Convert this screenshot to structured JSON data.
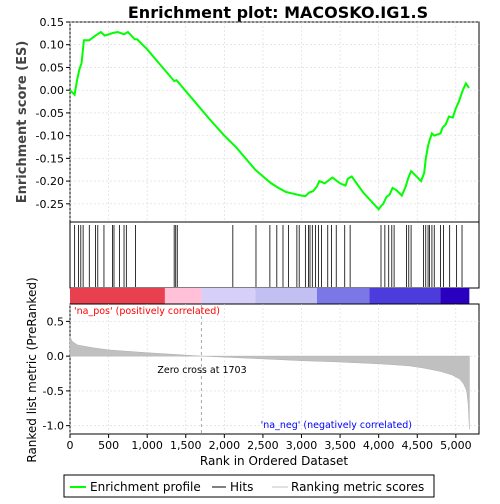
{
  "chart_data": {
    "type": "line",
    "title": "Enrichment plot: MACOSKO.IG1.S",
    "xlabel": "Rank in Ordered Dataset",
    "ylabel_top": "Enrichment score (ES)",
    "ylabel_bottom": "Ranked list metric (PreRanked)",
    "xlim": [
      0,
      5300
    ],
    "x_ticks": [
      0,
      500,
      1000,
      1500,
      2000,
      2500,
      3000,
      3500,
      4000,
      4500,
      5000
    ],
    "x_tick_labels": [
      "0",
      "500",
      "1,000",
      "1,500",
      "2,000",
      "2,500",
      "3,000",
      "3,500",
      "4,000",
      "4,500",
      "5,000"
    ],
    "es_ylim": [
      -0.29,
      0.15
    ],
    "es_ticks": [
      -0.25,
      -0.2,
      -0.15,
      -0.1,
      -0.05,
      0.0,
      0.05,
      0.1,
      0.15
    ],
    "es_tick_labels": [
      "-0.25",
      "-0.20",
      "-0.15",
      "-0.10",
      "-0.05",
      "0.00",
      "0.05",
      "0.10",
      "0.15"
    ],
    "metric_ylim": [
      -1.12,
      0.75
    ],
    "metric_ticks": [
      -1.0,
      -0.5,
      0.0,
      0.5
    ],
    "metric_tick_labels": [
      "-1.0",
      "-0.5",
      "0.0",
      "0.5"
    ],
    "grid": true,
    "colors": {
      "enrichment_line": "#00ff00",
      "hits": "#000000",
      "metric_fill": "#c0c0c0",
      "pos_label": "#ff0000",
      "neg_label": "#0000ff",
      "zero_cross_line": "#aaaaaa"
    },
    "enrichment_profile": {
      "x": [
        0,
        60,
        90,
        120,
        150,
        180,
        250,
        330,
        400,
        450,
        560,
        620,
        700,
        750,
        840,
        870,
        1000,
        1200,
        1350,
        1380,
        1400,
        1600,
        1800,
        2000,
        2150,
        2400,
        2600,
        2700,
        2800,
        2900,
        3000,
        3050,
        3100,
        3150,
        3200,
        3230,
        3300,
        3400,
        3500,
        3570,
        3600,
        3650,
        3800,
        4000,
        4030,
        4060,
        4100,
        4140,
        4180,
        4230,
        4300,
        4350,
        4380,
        4420,
        4550,
        4590,
        4610,
        4640,
        4660,
        4690,
        4720,
        4800,
        4830,
        4870,
        4910,
        4960,
        5000,
        5040,
        5090,
        5130,
        5170
      ],
      "y": [
        0.0,
        -0.01,
        0.02,
        0.045,
        0.06,
        0.11,
        0.11,
        0.12,
        0.128,
        0.12,
        0.126,
        0.128,
        0.123,
        0.128,
        0.112,
        0.112,
        0.09,
        0.05,
        0.02,
        0.022,
        0.018,
        -0.022,
        -0.062,
        -0.1,
        -0.125,
        -0.175,
        -0.204,
        -0.215,
        -0.224,
        -0.228,
        -0.232,
        -0.233,
        -0.225,
        -0.222,
        -0.212,
        -0.2,
        -0.205,
        -0.192,
        -0.205,
        -0.21,
        -0.195,
        -0.19,
        -0.225,
        -0.262,
        -0.255,
        -0.25,
        -0.235,
        -0.23,
        -0.215,
        -0.22,
        -0.232,
        -0.212,
        -0.195,
        -0.178,
        -0.2,
        -0.182,
        -0.15,
        -0.122,
        -0.11,
        -0.095,
        -0.1,
        -0.095,
        -0.082,
        -0.075,
        -0.058,
        -0.06,
        -0.04,
        -0.025,
        0.0,
        0.015,
        0.005
      ]
    },
    "hits_x": [
      60,
      110,
      140,
      170,
      250,
      330,
      360,
      440,
      550,
      570,
      640,
      700,
      730,
      850,
      1350,
      1370,
      1390,
      2110,
      2410,
      2590,
      2680,
      2760,
      2830,
      2940,
      2970,
      3050,
      3090,
      3110,
      3140,
      3180,
      3220,
      3260,
      3340,
      3390,
      3450,
      3560,
      3630,
      4030,
      4080,
      4130,
      4170,
      4200,
      4360,
      4390,
      4420,
      4580,
      4610,
      4640,
      4660,
      4690,
      4720,
      4800,
      4840,
      4920,
      5010,
      5080
    ],
    "ranking_metric": {
      "x": [
        0,
        30,
        100,
        200,
        300,
        500,
        800,
        1000,
        1300,
        1500,
        1703,
        1900,
        2300,
        2700,
        3000,
        3400,
        3800,
        4000,
        4200,
        4400,
        4600,
        4800,
        4950,
        5050,
        5100,
        5140,
        5160,
        5175
      ],
      "y": [
        0.28,
        0.21,
        0.16,
        0.14,
        0.12,
        0.09,
        0.065,
        0.05,
        0.03,
        0.015,
        0.0,
        -0.01,
        -0.03,
        -0.05,
        -0.065,
        -0.08,
        -0.1,
        -0.11,
        -0.125,
        -0.14,
        -0.175,
        -0.22,
        -0.27,
        -0.33,
        -0.4,
        -0.5,
        -0.7,
        -1.05
      ]
    },
    "zero_cross": 1703,
    "zero_cross_label": "Zero cross at 1703",
    "pos_label": "'na_pos' (positively correlated)",
    "neg_label": "'na_neg' (negatively correlated)",
    "color_band_segments": [
      {
        "x0": 0,
        "x1": 1230,
        "color": "#e8404f"
      },
      {
        "x0": 1230,
        "x1": 1703,
        "color": "#ffc0d8"
      },
      {
        "x0": 1703,
        "x1": 2400,
        "color": "#d6d0f8"
      },
      {
        "x0": 2400,
        "x1": 3200,
        "color": "#c2c0f2"
      },
      {
        "x0": 3200,
        "x1": 3880,
        "color": "#7a78e6"
      },
      {
        "x0": 3880,
        "x1": 4800,
        "color": "#4c3cdc"
      },
      {
        "x0": 4800,
        "x1": 5175,
        "color": "#2a00c0"
      }
    ],
    "legend_position": "bottom",
    "legend": [
      {
        "label": "Enrichment profile",
        "kind": "line-green"
      },
      {
        "label": "Hits",
        "kind": "line-black"
      },
      {
        "label": "Ranking metric scores",
        "kind": "line-gray"
      }
    ]
  }
}
